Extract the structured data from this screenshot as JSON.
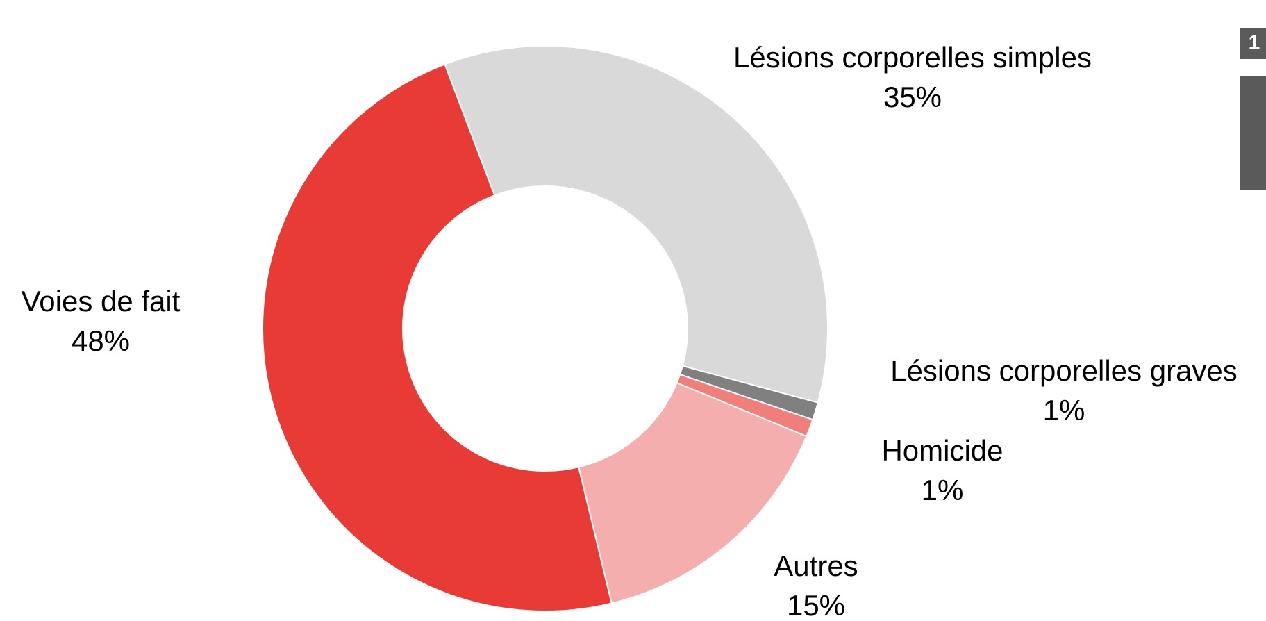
{
  "chart_data": {
    "type": "donut",
    "categories": [
      "Lésions corporelles simples",
      "Lésions corporelles graves",
      "Homicide",
      "Autres",
      "Voies de fait"
    ],
    "values": [
      35,
      1,
      1,
      15,
      48
    ],
    "value_labels": [
      "35%",
      "1%",
      "1%",
      "15%",
      "48%"
    ],
    "colors": [
      "#d9d9d9",
      "#808080",
      "#f07f7c",
      "#f5aeae",
      "#e83b35"
    ]
  },
  "side_panel": {
    "badge": "1"
  }
}
